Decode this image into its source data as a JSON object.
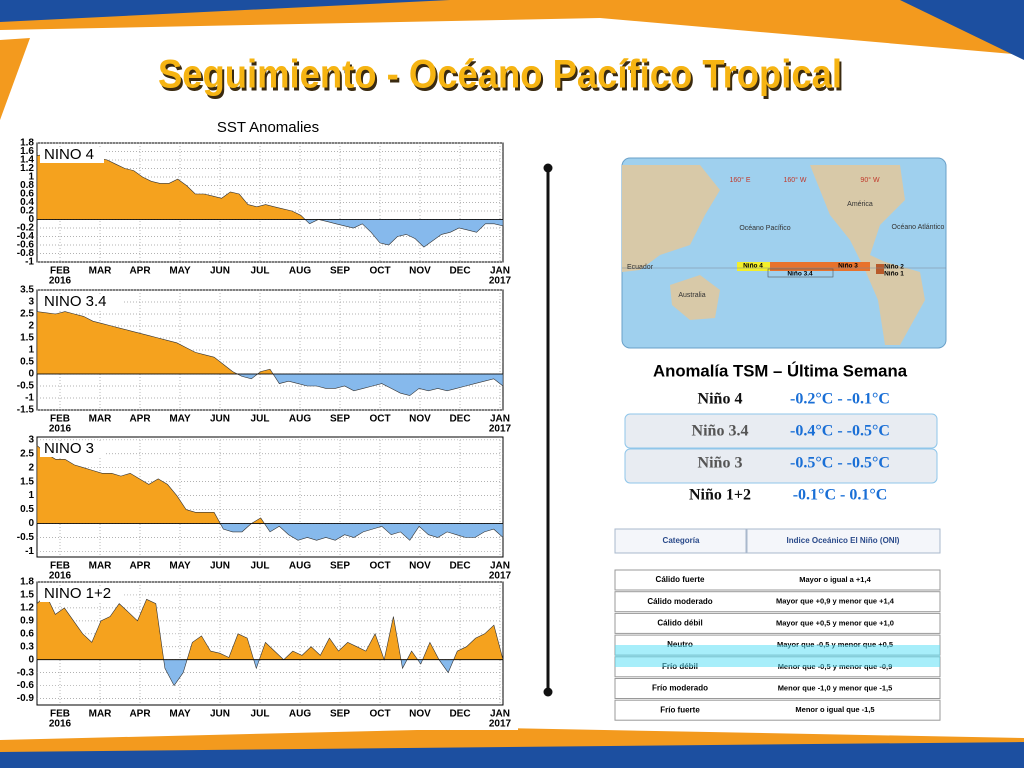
{
  "title": "Seguimiento - Océano Pacífico Tropical",
  "chart_heading": "SST Anomalies",
  "chart_data": [
    {
      "type": "area",
      "title": "NINO 4",
      "pos_color": "#f5a21e",
      "neg_color": "#86b9ec",
      "x_labels": [
        "FEB",
        "MAR",
        "APR",
        "MAY",
        "JUN",
        "JUL",
        "AUG",
        "SEP",
        "OCT",
        "NOV",
        "DEC",
        "JAN"
      ],
      "year_start": "2016",
      "year_end": "2017",
      "ylim": [
        -1,
        1.8
      ],
      "yticks": [
        1.8,
        1.6,
        1.4,
        1.2,
        1,
        0.8,
        0.6,
        0.4,
        0.2,
        0,
        -0.2,
        -0.4,
        -0.6,
        -0.8,
        -1
      ],
      "grid": true,
      "values": [
        1.5,
        1.55,
        1.6,
        1.65,
        1.6,
        1.55,
        1.5,
        1.45,
        1.4,
        1.3,
        1.2,
        1.15,
        1.0,
        0.9,
        0.85,
        0.85,
        0.95,
        0.8,
        0.6,
        0.6,
        0.55,
        0.5,
        0.65,
        0.6,
        0.35,
        0.3,
        0.35,
        0.3,
        0.25,
        0.2,
        0.1,
        -0.1,
        0,
        -0.05,
        -0.1,
        -0.15,
        -0.2,
        -0.1,
        -0.3,
        -0.55,
        -0.6,
        -0.4,
        -0.35,
        -0.45,
        -0.65,
        -0.5,
        -0.35,
        -0.3,
        -0.2,
        -0.25,
        -0.3,
        -0.1,
        -0.1,
        -0.15
      ]
    },
    {
      "type": "area",
      "title": "NINO 3.4",
      "pos_color": "#f5a21e",
      "neg_color": "#86b9ec",
      "x_labels": [
        "FEB",
        "MAR",
        "APR",
        "MAY",
        "JUN",
        "JUL",
        "AUG",
        "SEP",
        "OCT",
        "NOV",
        "DEC",
        "JAN"
      ],
      "year_start": "2016",
      "year_end": "2017",
      "ylim": [
        -1.5,
        3.5
      ],
      "yticks": [
        3.5,
        3,
        2.5,
        2,
        1.5,
        1,
        0.5,
        0,
        -0.5,
        -1,
        -1.5
      ],
      "grid": true,
      "values": [
        2.6,
        2.55,
        2.5,
        2.6,
        2.5,
        2.4,
        2.2,
        2.1,
        2.0,
        1.9,
        1.8,
        1.7,
        1.6,
        1.5,
        1.4,
        1.3,
        1.1,
        0.9,
        0.8,
        0.7,
        0.4,
        0.1,
        -0.1,
        -0.2,
        0.1,
        0.2,
        -0.4,
        -0.3,
        -0.4,
        -0.5,
        -0.5,
        -0.6,
        -0.6,
        -0.5,
        -0.7,
        -0.6,
        -0.5,
        -0.4,
        -0.6,
        -0.8,
        -0.9,
        -0.6,
        -0.7,
        -0.6,
        -0.7,
        -0.6,
        -0.5,
        -0.4,
        -0.3,
        -0.2,
        -0.5
      ]
    },
    {
      "type": "area",
      "title": "NINO 3",
      "pos_color": "#f5a21e",
      "neg_color": "#86b9ec",
      "x_labels": [
        "FEB",
        "MAR",
        "APR",
        "MAY",
        "JUN",
        "JUL",
        "AUG",
        "SEP",
        "OCT",
        "NOV",
        "DEC",
        "JAN"
      ],
      "year_start": "2016",
      "year_end": "2017",
      "ylim": [
        -1.2,
        3.1
      ],
      "yticks": [
        3,
        2.5,
        2,
        1.5,
        1,
        0.5,
        0,
        -0.5,
        -1
      ],
      "grid": true,
      "values": [
        2.8,
        2.5,
        2.3,
        2.3,
        2.1,
        2.0,
        1.9,
        1.8,
        1.8,
        1.7,
        1.8,
        1.6,
        1.4,
        1.6,
        1.4,
        1.0,
        0.5,
        0.4,
        0.4,
        0.4,
        -0.2,
        -0.3,
        -0.3,
        0.0,
        0.2,
        -0.3,
        -0.1,
        -0.4,
        -0.6,
        -0.5,
        -0.6,
        -0.5,
        -0.6,
        -0.4,
        -0.5,
        -0.3,
        -0.2,
        -0.1,
        -0.4,
        -0.3,
        -0.6,
        -0.1,
        -0.4,
        -0.5,
        -0.3,
        -0.4,
        -0.5,
        -0.5,
        -0.3,
        -0.2,
        -0.5
      ]
    },
    {
      "type": "area",
      "title": "NINO 1+2",
      "pos_color": "#f5a21e",
      "neg_color": "#86b9ec",
      "x_labels": [
        "FEB",
        "MAR",
        "APR",
        "MAY",
        "JUN",
        "JUL",
        "AUG",
        "SEP",
        "OCT",
        "NOV",
        "DEC",
        "JAN"
      ],
      "year_start": "2016",
      "year_end": "2017",
      "ylim": [
        -1.05,
        1.8
      ],
      "yticks": [
        1.8,
        1.5,
        1.2,
        0.9,
        0.6,
        0.3,
        0,
        -0.3,
        -0.6,
        -0.9
      ],
      "grid": true,
      "values": [
        1.3,
        1.5,
        1.05,
        1.2,
        0.9,
        0.6,
        0.4,
        0.9,
        1.0,
        1.3,
        1.1,
        0.9,
        1.4,
        1.3,
        -0.2,
        -0.6,
        -0.3,
        0.4,
        0.55,
        0.2,
        0.15,
        0.05,
        0.6,
        0.5,
        -0.2,
        0.4,
        0.2,
        0.0,
        0.2,
        0.1,
        0.3,
        0.1,
        0.5,
        0.2,
        0.4,
        0.3,
        0.2,
        0.6,
        0.0,
        1.0,
        -0.2,
        0.2,
        -0.1,
        0.4,
        0.0,
        -0.3,
        0.2,
        0.3,
        0.5,
        0.6,
        0.8,
        0.0
      ]
    }
  ],
  "map": {
    "labels": [
      "160° E",
      "160° W",
      "90° W",
      "América",
      "Océano Pacífico",
      "Océano Atlántico",
      "Ecuador",
      "Australia"
    ],
    "regions": [
      "Niño 4",
      "Niño 3.4",
      "Niño 3",
      "Niño 2",
      "Niño 1"
    ]
  },
  "anomaly": {
    "heading": "Anomalía TSM – Última Semana",
    "rows": [
      [
        "Niño 4",
        "-0.2°C - -0.1°C"
      ],
      [
        "Niño 3.4",
        "-0.4°C - -0.5°C"
      ],
      [
        "Niño 3",
        "-0.5°C - -0.5°C"
      ],
      [
        "Niño 1+2",
        "-0.1°C - 0.1°C"
      ]
    ]
  },
  "oni": {
    "header": [
      "Categoría",
      "Indice Oceánico El Niño (ONI)"
    ],
    "rows": [
      [
        "Cálido fuerte",
        "Mayor o igual a +1,4"
      ],
      [
        "Cálido moderado",
        "Mayor que +0,9 y menor que +1,4"
      ],
      [
        "Cálido débil",
        "Mayor que +0,5 y menor que +1,0"
      ],
      [
        "Neutro",
        "Mayor que -0,5 y menor que +0,5"
      ],
      [
        "Frío débil",
        "Menor que -0,5 y menor que -0,9"
      ],
      [
        "Frío moderado",
        "Menor que -1,0 y menor que -1,5"
      ],
      [
        "Frío fuerte",
        "Menor o igual que -1,5"
      ]
    ]
  }
}
